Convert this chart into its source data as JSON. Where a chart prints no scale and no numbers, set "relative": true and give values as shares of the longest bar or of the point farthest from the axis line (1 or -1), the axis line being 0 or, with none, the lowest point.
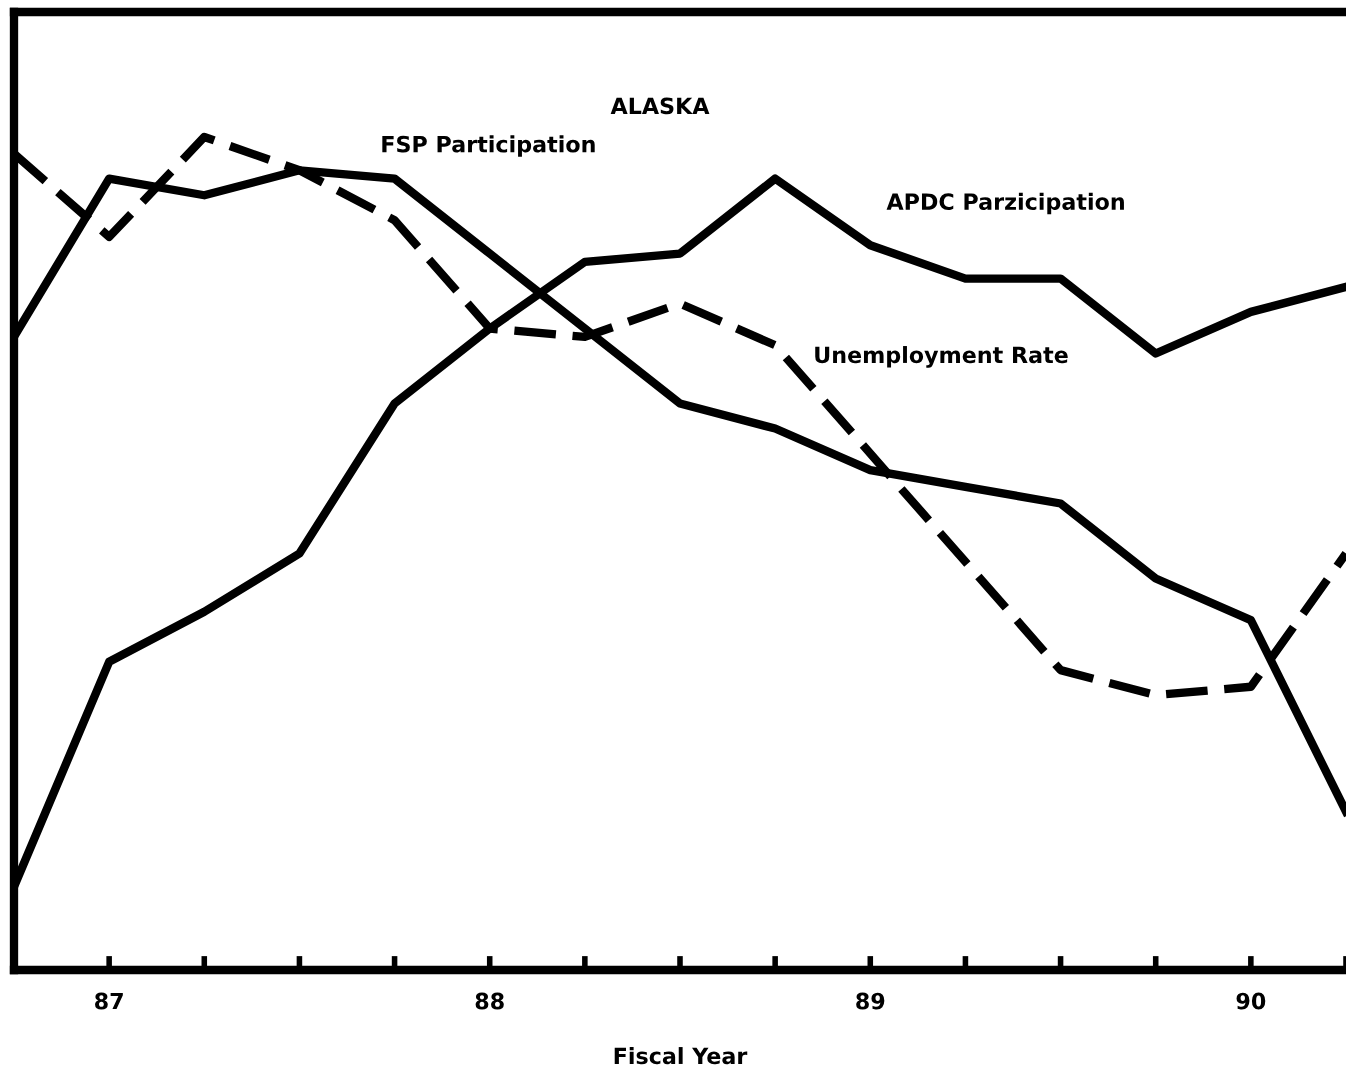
{
  "chart_data": {
    "type": "line",
    "title": "ALASKA",
    "xlabel": "Fiscal Year",
    "relative": true,
    "tick_labels": "x",
    "grid": false,
    "legend": false,
    "marker": "none",
    "x": [
      86.75,
      87,
      87.25,
      87.5,
      87.75,
      88,
      88.25,
      88.5,
      88.75,
      89,
      89.25,
      89.5,
      89.75,
      90,
      90.25
    ],
    "xlim": [
      86.75,
      90.25
    ],
    "xticks": [
      {
        "value": 86.75,
        "label": null
      },
      87,
      {
        "value": 87.25,
        "label": null
      },
      {
        "value": 87.5,
        "label": null
      },
      {
        "value": 87.75,
        "label": null
      },
      88,
      {
        "value": 88.25,
        "label": null
      },
      {
        "value": 88.5,
        "label": null
      },
      {
        "value": 88.75,
        "label": null
      },
      89,
      {
        "value": 89.25,
        "label": null
      },
      {
        "value": 89.5,
        "label": null
      },
      {
        "value": 89.75,
        "label": null
      },
      90,
      {
        "value": 90.25,
        "label": null
      }
    ],
    "series": [
      {
        "name": "FSP Participation",
        "color": "#000000",
        "line_style": "solid",
        "values": [
          0.76,
          0.95,
          0.93,
          0.96,
          0.95,
          0.86,
          0.77,
          0.68,
          0.65,
          0.6,
          0.58,
          0.56,
          0.47,
          0.42,
          0.19
        ]
      },
      {
        "name": "APDC Parzicipation",
        "color": "#000000",
        "line_style": "solid",
        "values": [
          0.1,
          0.37,
          0.43,
          0.5,
          0.68,
          0.77,
          0.85,
          0.86,
          0.95,
          0.87,
          0.83,
          0.83,
          0.74,
          0.79,
          0.82
        ]
      },
      {
        "name": "Unemployment Rate",
        "color": "#000000",
        "line_style": "dashed",
        "values": [
          0.98,
          0.88,
          1.0,
          0.96,
          0.9,
          0.77,
          0.76,
          0.8,
          0.75,
          0.62,
          0.49,
          0.36,
          0.33,
          0.34,
          0.5
        ]
      }
    ]
  }
}
